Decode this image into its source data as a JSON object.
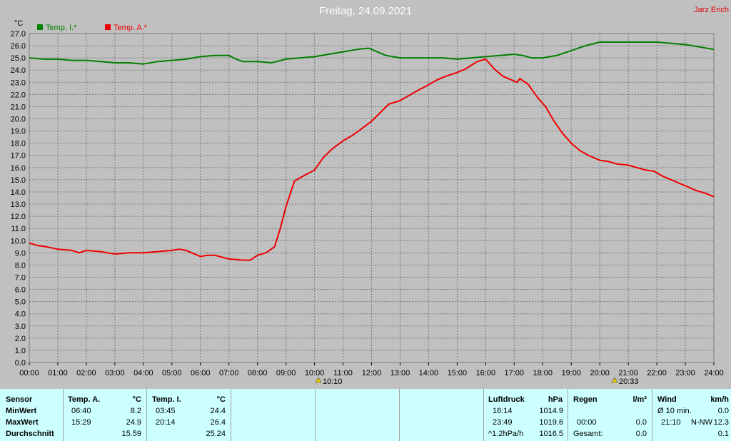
{
  "header": {
    "title": "Freitag, 24.09.2021",
    "owner": "Jarz Erich",
    "unit": "°C"
  },
  "legend": [
    {
      "name": "Temp. I.*",
      "color": "#008000"
    },
    {
      "name": "Temp. A.*",
      "color": "#ee0000"
    }
  ],
  "markers": {
    "sunrise": "10:10",
    "sunset": "20:33"
  },
  "chart_data": {
    "type": "line",
    "xlim": [
      0,
      24
    ],
    "ylim": [
      0,
      27
    ],
    "y_ticks": [
      "0.0",
      "1.0",
      "2.0",
      "3.0",
      "4.0",
      "5.0",
      "6.0",
      "7.0",
      "8.0",
      "9.0",
      "10.0",
      "11.0",
      "12.0",
      "13.0",
      "14.0",
      "15.0",
      "16.0",
      "17.0",
      "18.0",
      "19.0",
      "20.0",
      "21.0",
      "22.0",
      "23.0",
      "24.0",
      "25.0",
      "26.0",
      "27.0"
    ],
    "x_ticks": [
      "00:00",
      "01:00",
      "02:00",
      "03:00",
      "04:00",
      "05:00",
      "06:00",
      "07:00",
      "08:00",
      "09:00",
      "10:00",
      "11:00",
      "12:00",
      "13:00",
      "14:00",
      "15:00",
      "16:00",
      "17:00",
      "18:00",
      "19:00",
      "20:00",
      "21:00",
      "22:00",
      "23:00",
      "24:00"
    ],
    "grid": true,
    "series": [
      {
        "name": "Temp. I.*",
        "color": "#008000",
        "x": [
          0,
          0.5,
          1,
          1.5,
          2,
          2.5,
          3,
          3.5,
          4,
          4.5,
          5,
          5.5,
          6,
          6.5,
          7,
          7.25,
          7.5,
          8,
          8.5,
          9,
          9.5,
          10,
          10.5,
          11,
          11.5,
          11.9,
          12.2,
          12.5,
          13,
          13.5,
          14,
          14.5,
          15,
          15.5,
          16,
          16.5,
          17,
          17.3,
          17.6,
          18,
          18.5,
          19,
          19.5,
          20,
          20.5,
          21,
          21.5,
          22,
          22.5,
          23,
          23.5,
          24
        ],
        "y": [
          25.0,
          24.9,
          24.9,
          24.8,
          24.8,
          24.7,
          24.6,
          24.6,
          24.5,
          24.7,
          24.8,
          24.9,
          25.1,
          25.2,
          25.2,
          24.9,
          24.7,
          24.7,
          24.6,
          24.9,
          25.0,
          25.1,
          25.3,
          25.5,
          25.7,
          25.8,
          25.5,
          25.2,
          25.0,
          25.0,
          25.0,
          25.0,
          24.9,
          25.0,
          25.1,
          25.2,
          25.3,
          25.2,
          25.0,
          25.0,
          25.2,
          25.6,
          26.0,
          26.3,
          26.3,
          26.3,
          26.3,
          26.3,
          26.2,
          26.1,
          25.9,
          25.7
        ]
      },
      {
        "name": "Temp. A.*",
        "color": "#ee0000",
        "x": [
          0,
          0.3,
          0.6,
          1,
          1.5,
          1.75,
          2,
          2.5,
          3,
          3.5,
          4,
          4.5,
          5,
          5.25,
          5.5,
          6,
          6.25,
          6.5,
          7,
          7.5,
          7.75,
          8,
          8.3,
          8.6,
          8.8,
          9,
          9.3,
          9.6,
          10,
          10.3,
          10.6,
          11,
          11.3,
          11.6,
          12,
          12.3,
          12.6,
          13,
          13.3,
          13.6,
          14,
          14.3,
          14.6,
          15,
          15.3,
          15.5,
          15.7,
          16,
          16.3,
          16.6,
          16.9,
          17.1,
          17.2,
          17.5,
          17.8,
          18.1,
          18.4,
          18.7,
          19,
          19.3,
          19.6,
          20,
          20.3,
          20.6,
          21,
          21.3,
          21.6,
          21.9,
          22.2,
          22.5,
          22.8,
          23.1,
          23.4,
          23.7,
          24
        ],
        "y": [
          9.8,
          9.6,
          9.5,
          9.3,
          9.2,
          9.0,
          9.2,
          9.1,
          8.9,
          9.0,
          9.0,
          9.1,
          9.2,
          9.3,
          9.2,
          8.7,
          8.8,
          8.8,
          8.5,
          8.4,
          8.4,
          8.8,
          9.0,
          9.5,
          11.0,
          12.8,
          14.9,
          15.3,
          15.8,
          16.8,
          17.5,
          18.2,
          18.6,
          19.1,
          19.8,
          20.5,
          21.2,
          21.5,
          21.9,
          22.3,
          22.8,
          23.2,
          23.5,
          23.8,
          24.1,
          24.4,
          24.7,
          24.9,
          24.1,
          23.5,
          23.2,
          23.0,
          23.3,
          22.8,
          21.8,
          21.0,
          19.8,
          18.8,
          18.0,
          17.4,
          17.0,
          16.6,
          16.5,
          16.3,
          16.2,
          16.0,
          15.8,
          15.7,
          15.3,
          15.0,
          14.7,
          14.4,
          14.1,
          13.9,
          13.6
        ]
      }
    ]
  },
  "stats": {
    "sensor_header": "Sensor",
    "row_labels": [
      "MinWert",
      "MaxWert",
      "Durchschnitt"
    ],
    "temp_a": {
      "title": "Temp. A.",
      "unit": "°C",
      "min_time": "06:40",
      "min": "8.2",
      "max_time": "15:29",
      "max": "24.9",
      "avg": "15.59"
    },
    "temp_i": {
      "title": "Temp. I.",
      "unit": "°C",
      "min_time": "03:45",
      "min": "24.4",
      "max_time": "20:14",
      "max": "26.4",
      "avg": "25.24"
    },
    "pressure": {
      "title": "Luftdruck",
      "unit": "hPa",
      "min_time": "16:14",
      "min": "1014.9",
      "max_time": "23:49",
      "max": "1019.6",
      "trend": "^1.2hPa/h",
      "current": "1016.5"
    },
    "rain": {
      "title": "Regen",
      "unit": "l/m²",
      "max_time": "00:00",
      "max": "0.0",
      "total_label": "Gesamt:",
      "total": "0.0"
    },
    "wind": {
      "title": "Wind",
      "unit": "km/h",
      "avg_label": "Ø 10 min.",
      "avg": "0.0",
      "max_time": "21:10",
      "max_dir": "N-NW",
      "max": "12.3",
      "last": "0.1"
    }
  }
}
